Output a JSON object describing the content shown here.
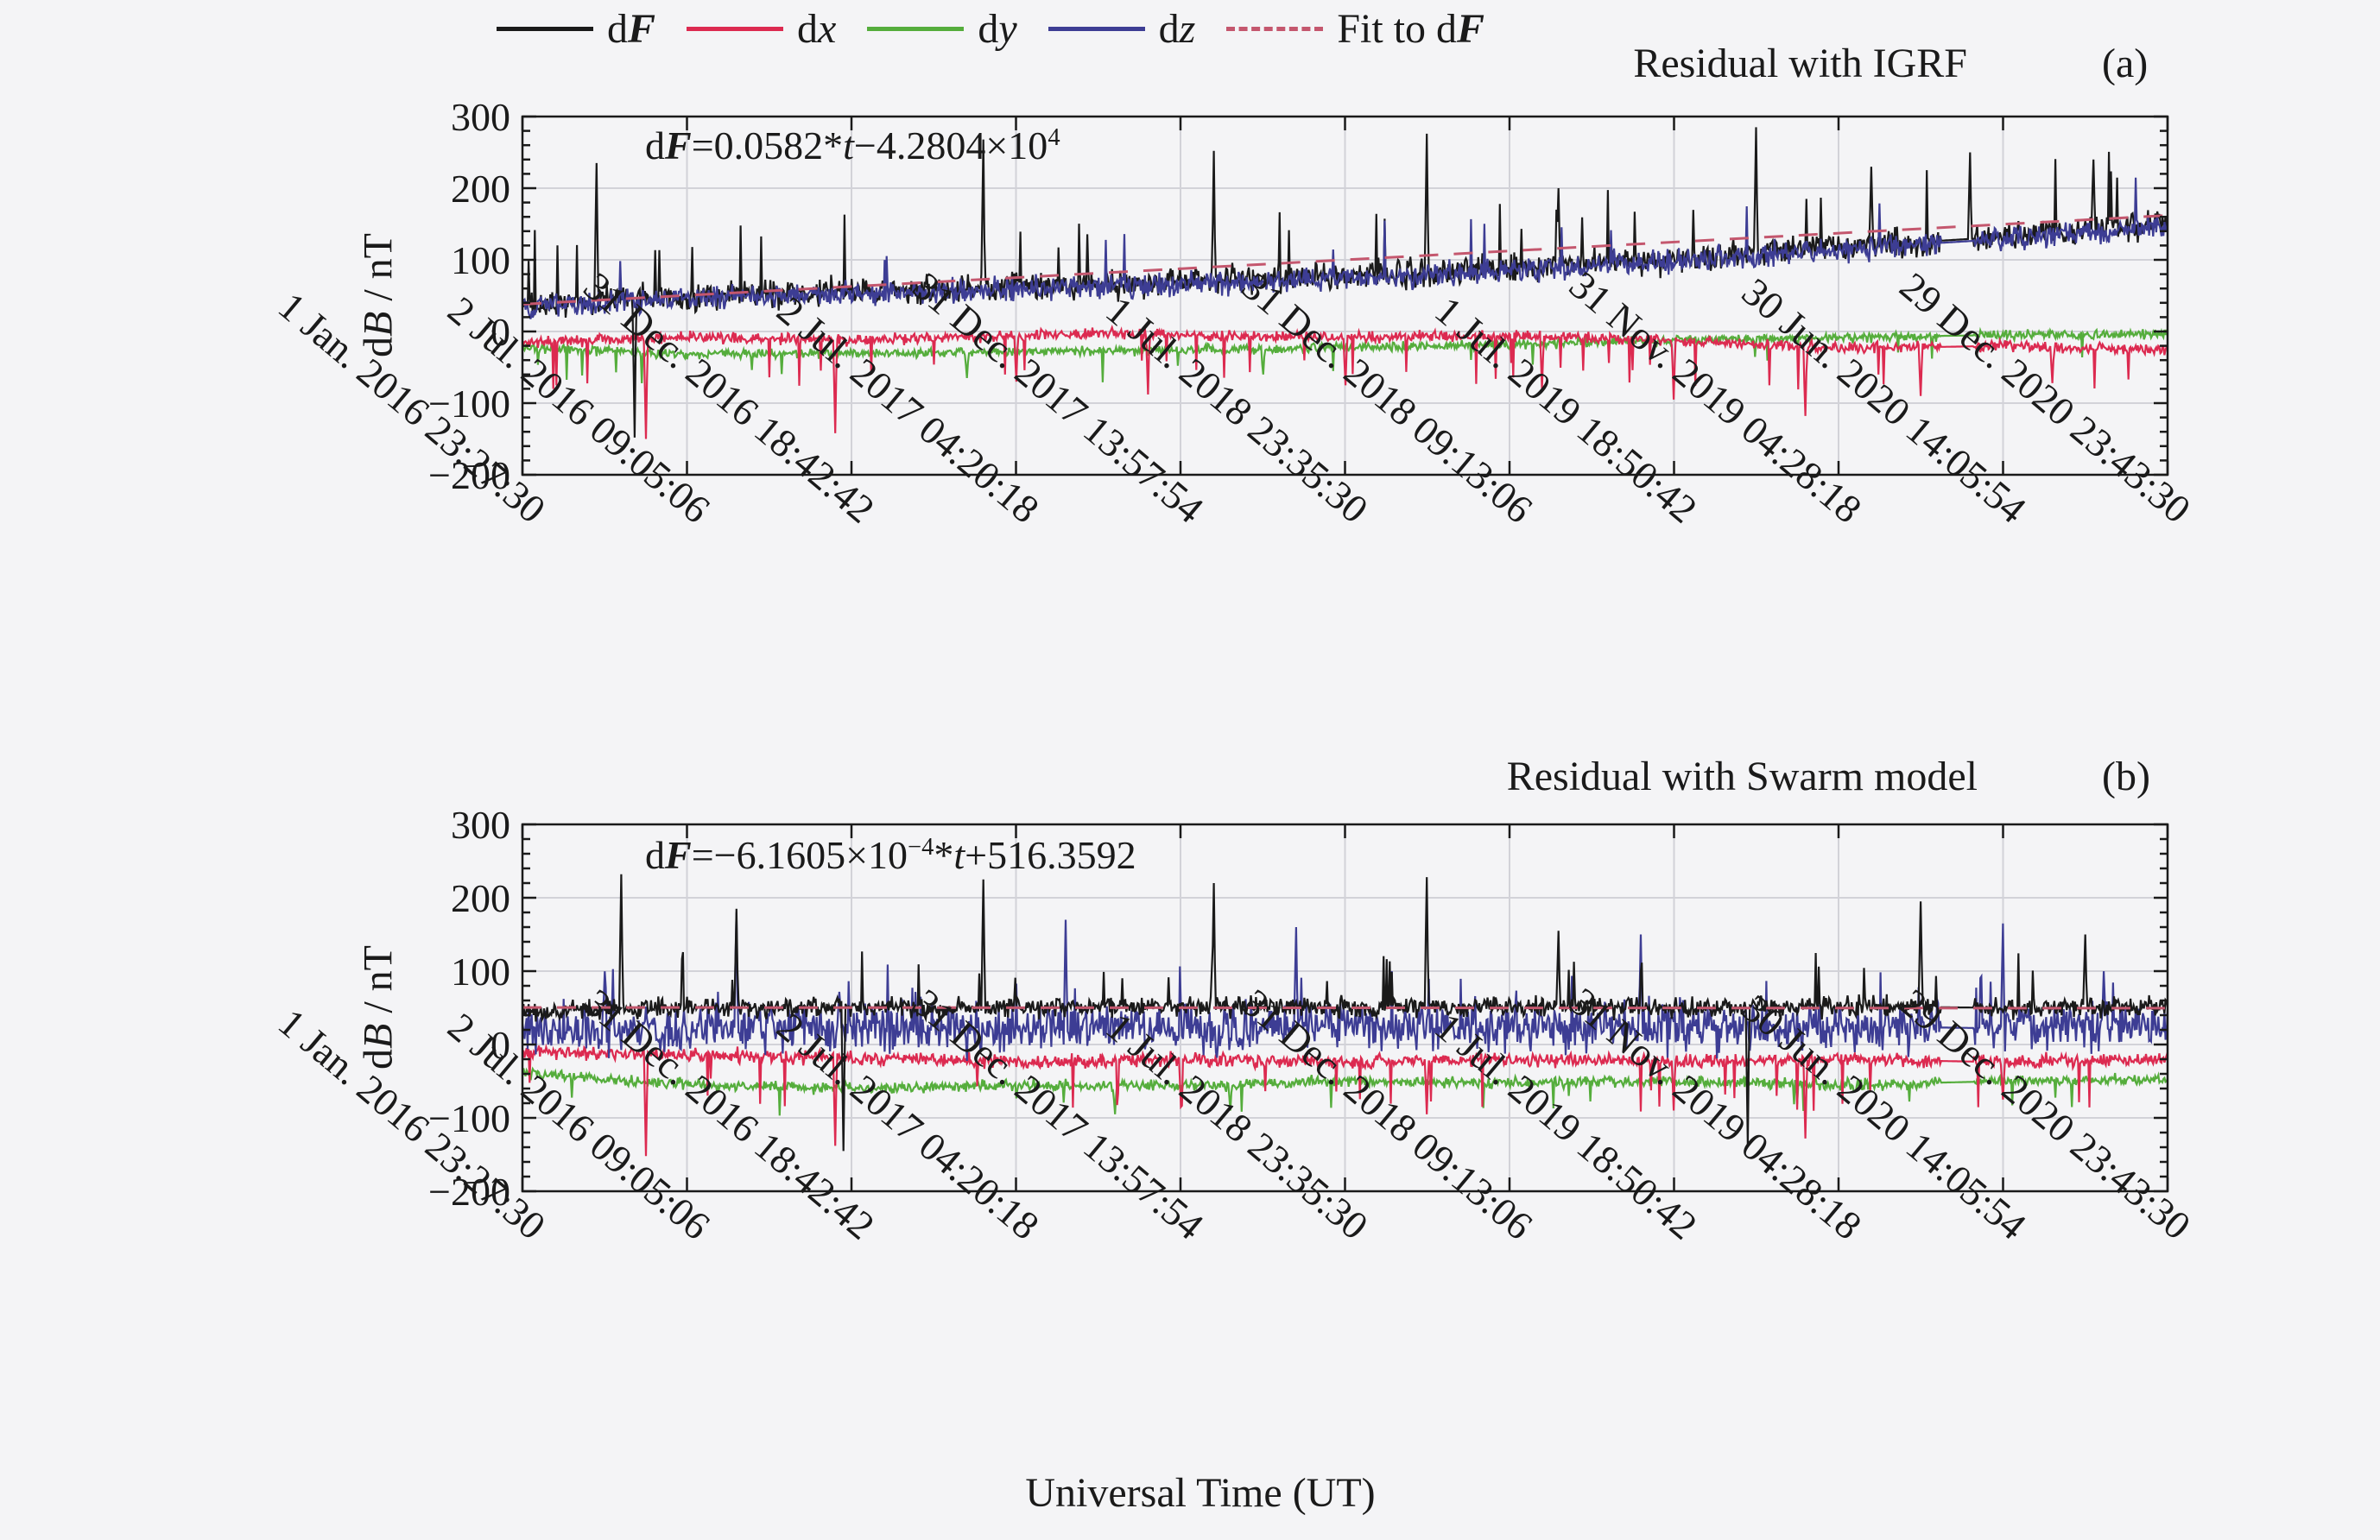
{
  "colors": {
    "background": "#f4f4f6",
    "frame": "#1a1a1a",
    "grid": "#d2d2d8",
    "dF": "#1a1a1a",
    "dx": "#dc2a50",
    "dy": "#55ad3c",
    "dz": "#3d3d94",
    "fit": "#c4576e"
  },
  "chart_data": {
    "type": "line",
    "xlabel": "Universal Time (UT)",
    "ylabel_segments": [
      {
        "t": "d"
      },
      {
        "t": "B",
        "i": 1
      },
      {
        "t": " / nT"
      }
    ],
    "ylim": [
      -200,
      300
    ],
    "yticks": [
      300,
      200,
      100,
      0,
      -100,
      -200
    ],
    "y_ticklabels": [
      "300",
      "200",
      "100",
      "0",
      "−100",
      "−200"
    ],
    "x_ticklabels": [
      "1 Jan. 2016 23:27:30",
      "2 Jul. 2016 09:05:06",
      "31 Dec. 2016 18:42:42",
      "2 Jul. 2017 04:20:18",
      "31 Dec. 2017 13:57:54",
      "1 Jul. 2018 23:35:30",
      "31 Dec. 2018 09:13:06",
      "1 Jul. 2019 18:50:42",
      "31 Nov. 2019 04:28:18",
      "30 Jun. 2020 14:05:54",
      "29 Dec. 2020 23:43:30"
    ],
    "grid": true,
    "legend_position": "top",
    "legend": [
      {
        "name": "dF",
        "segments": [
          {
            "t": "d"
          },
          {
            "t": "F",
            "i": 1,
            "b": 1
          }
        ],
        "color": "#1a1a1a",
        "dash": false
      },
      {
        "name": "dx",
        "segments": [
          {
            "t": "d"
          },
          {
            "t": "x",
            "i": 1
          }
        ],
        "color": "#dc2a50",
        "dash": false
      },
      {
        "name": "dy",
        "segments": [
          {
            "t": "d"
          },
          {
            "t": "y",
            "i": 1
          }
        ],
        "color": "#55ad3c",
        "dash": false
      },
      {
        "name": "dz",
        "segments": [
          {
            "t": "d"
          },
          {
            "t": "z",
            "i": 1
          }
        ],
        "color": "#3d3d94",
        "dash": false
      },
      {
        "name": "fit",
        "segments": [
          {
            "t": "Fit to d"
          },
          {
            "t": "F",
            "i": 1,
            "b": 1
          }
        ],
        "color": "#c4576e",
        "dash": true
      }
    ],
    "panels": [
      {
        "id": "a",
        "corner": "(a)",
        "title": "Residual with IGRF",
        "equation_segments": [
          {
            "t": "d"
          },
          {
            "t": "F",
            "i": 1,
            "b": 1
          },
          {
            "t": "="
          },
          {
            "t": "0.0582*"
          },
          {
            "t": "t",
            "i": 1
          },
          {
            "t": "−4.2804×10"
          },
          {
            "t": "4",
            "sup": 1
          }
        ],
        "fit_line": {
          "name": "Fit to dF",
          "y_start": 38,
          "y_end": 162,
          "color": "#c4576e"
        },
        "gap": [
          0.862,
          0.882
        ],
        "series": [
          {
            "name": "dy",
            "color": "#55ad3c",
            "noise": 8,
            "spike_prob": 0.012,
            "spike_amp": -45,
            "anchors": [
              [
                0,
                -22
              ],
              [
                0.1,
                -32
              ],
              [
                0.2,
                -30
              ],
              [
                0.3,
                -28
              ],
              [
                0.4,
                -26
              ],
              [
                0.5,
                -22
              ],
              [
                0.6,
                -18
              ],
              [
                0.7,
                -12
              ],
              [
                0.8,
                -8
              ],
              [
                0.9,
                -5
              ],
              [
                1,
                -4
              ]
            ],
            "fixed_spikes": [
              [
                0.27,
                -65
              ],
              [
                0.45,
                -60
              ]
            ]
          },
          {
            "name": "dx",
            "color": "#dc2a50",
            "noise": 9,
            "spike_prob": 0.02,
            "spike_amp": -70,
            "anchors": [
              [
                0,
                -15
              ],
              [
                0.1,
                -8
              ],
              [
                0.2,
                -12
              ],
              [
                0.3,
                -6
              ],
              [
                0.35,
                -2
              ],
              [
                0.4,
                -5
              ],
              [
                0.5,
                -8
              ],
              [
                0.6,
                -6
              ],
              [
                0.7,
                -12
              ],
              [
                0.75,
                -18
              ],
              [
                0.8,
                -24
              ],
              [
                0.9,
                -20
              ],
              [
                1,
                -26
              ]
            ],
            "fixed_spikes": [
              [
                0.075,
                -150
              ],
              [
                0.19,
                -142
              ],
              [
                0.3,
                -70
              ],
              [
                0.38,
                -88
              ],
              [
                0.5,
                -75
              ],
              [
                0.62,
                -80
              ],
              [
                0.7,
                -95
              ],
              [
                0.78,
                -118
              ],
              [
                0.85,
                -90
              ],
              [
                0.93,
                -72
              ]
            ]
          },
          {
            "name": "dF",
            "color": "#1a1a1a",
            "noise": 24,
            "spike_prob": 0.018,
            "spike_amp": 110,
            "anchors": [
              [
                0,
                35
              ],
              [
                0.05,
                45
              ],
              [
                0.1,
                48
              ],
              [
                0.15,
                52
              ],
              [
                0.2,
                55
              ],
              [
                0.25,
                58
              ],
              [
                0.3,
                62
              ],
              [
                0.35,
                65
              ],
              [
                0.4,
                70
              ],
              [
                0.45,
                72
              ],
              [
                0.5,
                78
              ],
              [
                0.55,
                82
              ],
              [
                0.6,
                88
              ],
              [
                0.65,
                95
              ],
              [
                0.7,
                100
              ],
              [
                0.75,
                108
              ],
              [
                0.8,
                118
              ],
              [
                0.85,
                125
              ],
              [
                0.9,
                132
              ],
              [
                0.95,
                140
              ],
              [
                1,
                150
              ]
            ],
            "fixed_spikes": [
              [
                0.045,
                235
              ],
              [
                0.068,
                -148
              ],
              [
                0.28,
                268
              ],
              [
                0.42,
                252
              ],
              [
                0.55,
                276
              ],
              [
                0.63,
                200
              ],
              [
                0.75,
                285
              ],
              [
                0.82,
                230
              ],
              [
                0.88,
                250
              ],
              [
                0.955,
                240
              ]
            ]
          },
          {
            "name": "dz",
            "color": "#3d3d94",
            "noise": 20,
            "spike_prob": 0.012,
            "spike_amp": 80,
            "anchors": [
              [
                0,
                32
              ],
              [
                0.05,
                42
              ],
              [
                0.1,
                45
              ],
              [
                0.15,
                49
              ],
              [
                0.2,
                52
              ],
              [
                0.25,
                55
              ],
              [
                0.3,
                59
              ],
              [
                0.35,
                62
              ],
              [
                0.4,
                67
              ],
              [
                0.45,
                69
              ],
              [
                0.5,
                75
              ],
              [
                0.55,
                79
              ],
              [
                0.6,
                85
              ],
              [
                0.65,
                92
              ],
              [
                0.7,
                97
              ],
              [
                0.75,
                105
              ],
              [
                0.8,
                115
              ],
              [
                0.85,
                122
              ],
              [
                0.9,
                129
              ],
              [
                0.95,
                137
              ],
              [
                1,
                147
              ]
            ],
            "fixed_spikes": []
          }
        ]
      },
      {
        "id": "b",
        "corner": "(b)",
        "title": "Residual with Swarm model",
        "equation_segments": [
          {
            "t": "d"
          },
          {
            "t": "F",
            "i": 1,
            "b": 1
          },
          {
            "t": "="
          },
          {
            "t": "−6.1605×10"
          },
          {
            "t": "−4",
            "sup": 1
          },
          {
            "t": "*"
          },
          {
            "t": "t",
            "i": 1
          },
          {
            "t": "+516.3592"
          }
        ],
        "fit_line": {
          "name": "Fit to dF",
          "y_start": 50.5,
          "y_end": 49.5,
          "color": "#c4576e"
        },
        "gap": [
          0.862,
          0.882
        ],
        "series": [
          {
            "name": "dy",
            "color": "#55ad3c",
            "noise": 9,
            "spike_prob": 0.012,
            "spike_amp": -40,
            "anchors": [
              [
                0,
                -38
              ],
              [
                0.08,
                -52
              ],
              [
                0.2,
                -60
              ],
              [
                0.3,
                -55
              ],
              [
                0.4,
                -56
              ],
              [
                0.5,
                -50
              ],
              [
                0.6,
                -52
              ],
              [
                0.7,
                -50
              ],
              [
                0.8,
                -55
              ],
              [
                0.9,
                -50
              ],
              [
                1,
                -48
              ]
            ],
            "fixed_spikes": [
              [
                0.36,
                -95
              ],
              [
                0.43,
                -90
              ]
            ]
          },
          {
            "name": "dx",
            "color": "#dc2a50",
            "noise": 11,
            "spike_prob": 0.018,
            "spike_amp": -70,
            "anchors": [
              [
                0,
                -10
              ],
              [
                0.1,
                -14
              ],
              [
                0.2,
                -18
              ],
              [
                0.3,
                -24
              ],
              [
                0.4,
                -20
              ],
              [
                0.5,
                -24
              ],
              [
                0.6,
                -20
              ],
              [
                0.7,
                -24
              ],
              [
                0.8,
                -20
              ],
              [
                0.9,
                -24
              ],
              [
                1,
                -20
              ]
            ],
            "fixed_spikes": [
              [
                0.075,
                -152
              ],
              [
                0.19,
                -138
              ],
              [
                0.4,
                -85
              ],
              [
                0.55,
                -95
              ],
              [
                0.7,
                -90
              ],
              [
                0.78,
                -128
              ],
              [
                0.9,
                -75
              ]
            ]
          },
          {
            "name": "dz",
            "color": "#3d3d94",
            "noise": 40,
            "spike_prob": 0.02,
            "spike_amp": 85,
            "anchors": [
              [
                0,
                18
              ],
              [
                0.1,
                22
              ],
              [
                0.2,
                25
              ],
              [
                0.3,
                22
              ],
              [
                0.4,
                25
              ],
              [
                0.5,
                22
              ],
              [
                0.6,
                25
              ],
              [
                0.7,
                22
              ],
              [
                0.8,
                25
              ],
              [
                0.9,
                22
              ],
              [
                1,
                25
              ]
            ],
            "fixed_spikes": [
              [
                0.13,
                180
              ],
              [
                0.33,
                170
              ],
              [
                0.47,
                160
              ],
              [
                0.68,
                150
              ],
              [
                0.9,
                165
              ]
            ]
          },
          {
            "name": "dF",
            "color": "#1a1a1a",
            "noise": 16,
            "spike_prob": 0.02,
            "spike_amp": 80,
            "anchors": [
              [
                0,
                45
              ],
              [
                0.1,
                50
              ],
              [
                0.2,
                52
              ],
              [
                0.3,
                50
              ],
              [
                0.4,
                52
              ],
              [
                0.5,
                50
              ],
              [
                0.6,
                52
              ],
              [
                0.7,
                50
              ],
              [
                0.8,
                52
              ],
              [
                0.9,
                50
              ],
              [
                1,
                52
              ]
            ],
            "fixed_spikes": [
              [
                0.06,
                232
              ],
              [
                0.13,
                185
              ],
              [
                0.195,
                -145
              ],
              [
                0.28,
                225
              ],
              [
                0.42,
                220
              ],
              [
                0.55,
                228
              ],
              [
                0.63,
                155
              ],
              [
                0.745,
                -138
              ],
              [
                0.85,
                195
              ],
              [
                0.95,
                150
              ]
            ]
          }
        ]
      }
    ]
  }
}
